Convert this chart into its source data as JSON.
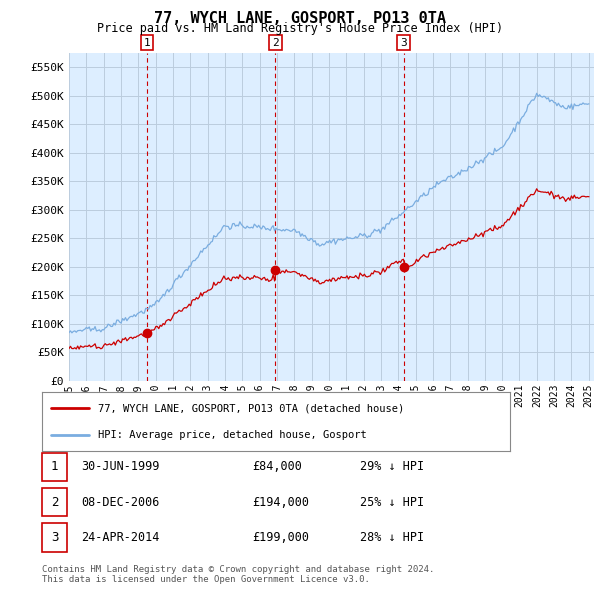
{
  "title": "77, WYCH LANE, GOSPORT, PO13 0TA",
  "subtitle": "Price paid vs. HM Land Registry's House Price Index (HPI)",
  "ylim": [
    0,
    575000
  ],
  "yticks": [
    0,
    50000,
    100000,
    150000,
    200000,
    250000,
    300000,
    350000,
    400000,
    450000,
    500000,
    550000
  ],
  "ytick_labels": [
    "£0",
    "£50K",
    "£100K",
    "£150K",
    "£200K",
    "£250K",
    "£300K",
    "£350K",
    "£400K",
    "£450K",
    "£500K",
    "£550K"
  ],
  "hpi_color": "#7aade0",
  "price_color": "#cc0000",
  "grid_color": "#bbccdd",
  "chart_bg": "#ddeeff",
  "bg_color": "#ffffff",
  "transactions": [
    {
      "label": "1",
      "date": "30-JUN-1999",
      "price": 84000,
      "pct": "29%",
      "year": 1999.5
    },
    {
      "label": "2",
      "date": "08-DEC-2006",
      "price": 194000,
      "pct": "25%",
      "year": 2006.917
    },
    {
      "label": "3",
      "date": "24-APR-2014",
      "price": 199000,
      "pct": "28%",
      "year": 2014.31
    }
  ],
  "legend_line1": "77, WYCH LANE, GOSPORT, PO13 0TA (detached house)",
  "legend_line2": "HPI: Average price, detached house, Gosport",
  "footnote": "Contains HM Land Registry data © Crown copyright and database right 2024.\nThis data is licensed under the Open Government Licence v3.0.",
  "x_start_year": 1995,
  "x_end_year": 2025
}
